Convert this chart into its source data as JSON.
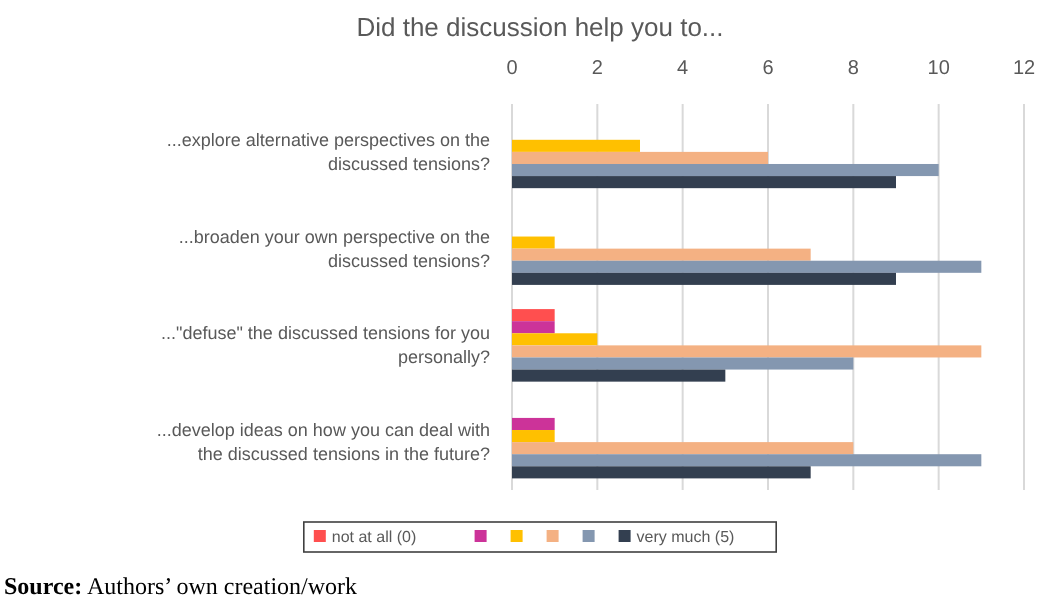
{
  "chart_data": {
    "type": "bar",
    "orientation": "horizontal",
    "title": "Did the discussion help you to...",
    "categories": [
      "...explore alternative perspectives on the discussed tensions?",
      "...broaden your own perspective on the discussed tensions?",
      "...\"defuse\" the discussed tensions for you personally?",
      "...develop ideas on how you can deal with the discussed tensions in the future?"
    ],
    "series": [
      {
        "name": "not at all (0)",
        "color": "#ff4f4f",
        "values": [
          0,
          0,
          1,
          0
        ]
      },
      {
        "color": "#cc3399",
        "values": [
          0,
          0,
          1,
          1
        ]
      },
      {
        "color": "#ffc000",
        "values": [
          3,
          1,
          2,
          1
        ]
      },
      {
        "color": "#f4b183",
        "values": [
          6,
          7,
          11,
          8
        ]
      },
      {
        "color": "#8497b0",
        "values": [
          10,
          11,
          8,
          11
        ]
      },
      {
        "name": "very much (5)",
        "color": "#333f50",
        "values": [
          9,
          9,
          5,
          7
        ]
      }
    ],
    "xlim": [
      0,
      12
    ],
    "xticks": [
      0,
      2,
      4,
      6,
      8,
      10,
      12
    ],
    "grid": "x",
    "legend": "bottom",
    "annotations": [
      "Source: Authors’ own creation/work"
    ]
  }
}
